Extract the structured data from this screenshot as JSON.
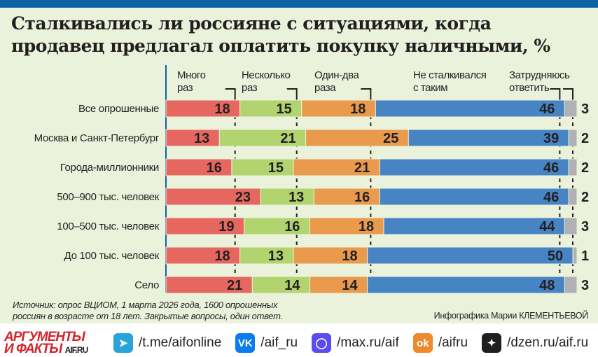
{
  "title": "Сталкивались ли россияне с ситуациями, когда продавец предлагал оплатить покупку наличными, %",
  "chart_data": {
    "type": "bar",
    "orientation": "horizontal-stacked-100",
    "unit": "%",
    "categories": [
      "Все опрошенные",
      "Москва и Санкт-Петербург",
      "Города-миллионники",
      "500–900 тыс. человек",
      "100–500 тыс. человек",
      "До 100 тыс. человек",
      "Село"
    ],
    "series": [
      {
        "name": "Много раз",
        "name_lines": [
          "Много",
          "раз"
        ],
        "color": "#e5675f",
        "values": [
          18,
          13,
          16,
          23,
          19,
          18,
          21
        ]
      },
      {
        "name": "Несколько раз",
        "name_lines": [
          "Несколько",
          "раз"
        ],
        "color": "#b2d46f",
        "values": [
          15,
          21,
          15,
          13,
          16,
          13,
          14
        ]
      },
      {
        "name": "Один-два раза",
        "name_lines": [
          "Один-два",
          "раза"
        ],
        "color": "#e99a4c",
        "values": [
          18,
          25,
          21,
          16,
          18,
          18,
          14
        ]
      },
      {
        "name": "Не сталкивался с таким",
        "name_lines": [
          "Не сталкивался",
          "с таким"
        ],
        "color": "#4684c4",
        "values": [
          46,
          39,
          46,
          46,
          44,
          50,
          48
        ]
      },
      {
        "name": "Затрудняюсь ответить",
        "name_lines": [
          "Затрудняюсь",
          "ответить"
        ],
        "color": "#b1b1b5",
        "values": [
          3,
          2,
          2,
          2,
          3,
          1,
          3
        ]
      }
    ],
    "xlim": [
      0,
      100
    ],
    "legend": "top, labels above segments"
  },
  "source_lines": [
    "Источник: опрос ВЦИОМ, 1 марта 2026 года, 1600 опрошенных",
    "россиян в возрасте от 18 лет. Закрытые вопросы, один ответ."
  ],
  "credit": "Инфографика Марии КЛЕМЕНТЬЕВОЙ",
  "footer": {
    "logo": {
      "line1": "АРГУМЕНТЫ",
      "line2": "И ФАКТЫ",
      "site": "AIF.RU"
    },
    "links": [
      {
        "icon": "telegram-icon",
        "text": "/t.me/aifonline",
        "color": "#2aa3dd"
      },
      {
        "icon": "vk-icon",
        "text": "/aif_ru",
        "color": "#0a7cf0"
      },
      {
        "icon": "max-icon",
        "text": "/max.ru/aif",
        "color": "#5a4cf0"
      },
      {
        "icon": "odnoklassniki-icon",
        "text": "/aifru",
        "color": "#ee8a2e"
      },
      {
        "icon": "dzen-icon",
        "text": "/dzen.ru/aif.ru",
        "color": "#1f1f1f"
      }
    ]
  }
}
